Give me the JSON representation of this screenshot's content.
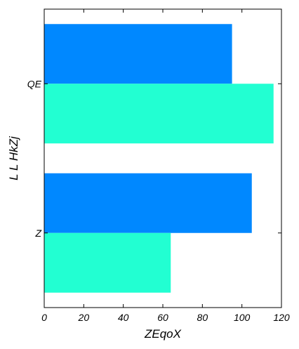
{
  "chart_data": {
    "type": "bar",
    "orientation": "horizontal",
    "categories": [
      "Z",
      "QE"
    ],
    "series": [
      {
        "values": [
          64,
          116
        ],
        "color": "#22ffd2"
      },
      {
        "values": [
          105,
          95
        ],
        "color": "#0088ff"
      }
    ],
    "xlabel": "ZEqoX",
    "ylabel": "L L HkZj",
    "xlim": [
      0,
      120
    ],
    "xticks": [
      0,
      20,
      40,
      60,
      80,
      100,
      120
    ],
    "grid": false
  }
}
